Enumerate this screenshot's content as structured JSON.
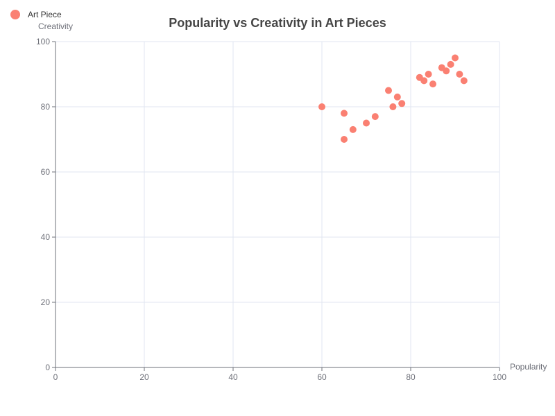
{
  "chart_data": {
    "type": "scatter",
    "title": "Popularity vs Creativity in Art Pieces",
    "xlabel": "Popularity",
    "ylabel": "Creativity",
    "xlim": [
      0,
      100
    ],
    "ylim": [
      0,
      100
    ],
    "x_ticks": [
      0,
      20,
      40,
      60,
      80,
      100
    ],
    "y_ticks": [
      0,
      20,
      40,
      60,
      80,
      100
    ],
    "grid": true,
    "legend_position": "top-left",
    "series": [
      {
        "name": "Art Piece",
        "color": "#fa8072",
        "points": [
          {
            "x": 60,
            "y": 80
          },
          {
            "x": 65,
            "y": 78
          },
          {
            "x": 65,
            "y": 70
          },
          {
            "x": 67,
            "y": 73
          },
          {
            "x": 70,
            "y": 75
          },
          {
            "x": 72,
            "y": 77
          },
          {
            "x": 75,
            "y": 85
          },
          {
            "x": 76,
            "y": 80
          },
          {
            "x": 77,
            "y": 83
          },
          {
            "x": 78,
            "y": 81
          },
          {
            "x": 82,
            "y": 89
          },
          {
            "x": 83,
            "y": 88
          },
          {
            "x": 84,
            "y": 90
          },
          {
            "x": 85,
            "y": 87
          },
          {
            "x": 87,
            "y": 92
          },
          {
            "x": 88,
            "y": 91
          },
          {
            "x": 89,
            "y": 93
          },
          {
            "x": 90,
            "y": 95
          },
          {
            "x": 91,
            "y": 90
          },
          {
            "x": 92,
            "y": 88
          }
        ]
      }
    ]
  }
}
